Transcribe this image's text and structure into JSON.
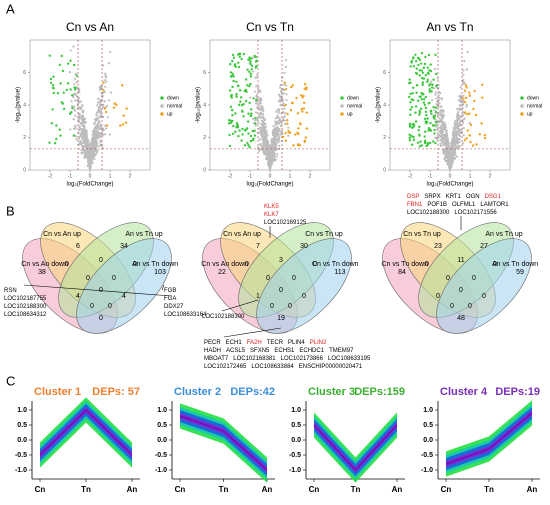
{
  "panel_labels": [
    "A",
    "B",
    "C"
  ],
  "volcano": [
    {
      "title": "Cn vs An",
      "ylabel": "-log₁₀(pvalue)",
      "xlabel": "log₂(FoldChange)",
      "legend": [
        "down",
        "normal",
        "up"
      ],
      "colors": [
        "#3cc83c",
        "#bdbdbd",
        "#f0a020"
      ],
      "xticks": [
        -2,
        -1,
        0,
        1,
        2
      ],
      "yticks": [
        0,
        2,
        4,
        6
      ]
    },
    {
      "title": "Cn vs Tn",
      "ylabel": "-log₁₀(pvalue)",
      "xlabel": "log₂(FoldChange)",
      "legend": [
        "down",
        "normal",
        "up"
      ],
      "colors": [
        "#3cc83c",
        "#bdbdbd",
        "#f0a020"
      ],
      "xticks": [
        -2,
        -1,
        0,
        1,
        2
      ],
      "yticks": [
        0,
        2,
        4,
        6
      ]
    },
    {
      "title": "An vs Tn",
      "ylabel": "-log₁₀(pvalue)",
      "xlabel": "log₂(FoldChange)",
      "legend": [
        "down",
        "normal",
        "up"
      ],
      "colors": [
        "#3cc83c",
        "#bdbdbd",
        "#f0a020"
      ],
      "xticks": [
        -2,
        -1,
        0,
        1,
        2
      ],
      "yticks": [
        0,
        2,
        4,
        6
      ]
    }
  ],
  "venn": [
    {
      "sets": [
        "Cn vs An up",
        "An vs Tn up",
        "Cn vs An down",
        "An vs Tn down"
      ],
      "counts": [
        6,
        34,
        38,
        103,
        0,
        0,
        0,
        4,
        4,
        0,
        0,
        0,
        0,
        0,
        0
      ],
      "annotations": [
        {
          "lines": [
            [
              "RSN"
            ],
            [
              "LOC102187755"
            ],
            [
              "LOC102188300"
            ],
            [
              "LOC108634312"
            ]
          ]
        },
        {
          "lines": [
            [
              "FGB"
            ],
            [
              "FGA"
            ],
            [
              "DDX27"
            ],
            [
              "LOC108633164"
            ]
          ]
        }
      ]
    },
    {
      "sets": [
        "Cn vs An up",
        "Cn vs Tn up",
        "Cn vs An down",
        "Cn vs Tn down"
      ],
      "counts": [
        7,
        30,
        22,
        113,
        3,
        0,
        0,
        1,
        0,
        19,
        0,
        0,
        0,
        0,
        0
      ],
      "annotations": [
        {
          "lines": [
            [
              {
                "text": "KLK5",
                "color": "#e02020"
              }
            ],
            [
              {
                "text": "KLK7",
                "color": "#e02020"
              }
            ],
            [
              "LOC102169125"
            ]
          ]
        },
        {
          "lines": [
            [
              "LOC102188300"
            ]
          ]
        },
        {
          "lines": [
            [
              "PECR",
              "ECH1",
              {
                "text": "FA2H",
                "color": "#e02020"
              },
              "TECR",
              "PLIN4",
              {
                "text": "PLIN2",
                "color": "#e02020"
              }
            ],
            [
              "HADH",
              "ACSL5",
              "SFXN5",
              "ECHS1",
              "ECHDC1",
              "TMEM97"
            ],
            [
              "MBOAT7",
              "LOC102168381",
              "LOC102173866",
              "LOC108633195"
            ],
            [
              "LOC102172465",
              "LOC108633884",
              "ENSCHIP00000020471"
            ]
          ]
        }
      ]
    },
    {
      "sets": [
        "Cn vs Tn up",
        "An vs Tn up",
        "Cn vs Tn down",
        "An vs Tn down"
      ],
      "counts": [
        23,
        27,
        84,
        59,
        11,
        0,
        0,
        0,
        0,
        48,
        0,
        0,
        0,
        0,
        0
      ],
      "annotations": [
        {
          "lines": [
            [
              {
                "text": "DSP",
                "color": "#e02020"
              },
              "SRPX",
              "KRT1",
              "OGN",
              {
                "text": "DSG1",
                "color": "#e02020"
              }
            ],
            [
              {
                "text": "FBN1",
                "color": "#e02020"
              },
              "POF1B",
              "OLFML1",
              "LAMTOR1"
            ],
            [
              "LOC102188300",
              "LOC102171556"
            ]
          ]
        }
      ]
    }
  ],
  "chart_data": {
    "type": "line",
    "categories": [
      "Cn",
      "Tn",
      "An"
    ],
    "ylim": [
      -1.3,
      1.3
    ],
    "yticks": [
      {
        "value": 1,
        "label": "1.0"
      },
      0.5,
      {
        "value": 0,
        "label": "0.0"
      },
      -0.5,
      {
        "value": -1,
        "label": "-1.0"
      }
    ],
    "series": [
      {
        "name": "Cluster 1",
        "deps": "DEPs: 57",
        "color": "#f08030",
        "values": [
          -0.5,
          1.0,
          -0.5
        ]
      },
      {
        "name": "Cluster 2",
        "deps": "DEPs:42",
        "color": "#3a8ed8",
        "values": [
          0.8,
          0.3,
          -1.0
        ]
      },
      {
        "name": "Cluster 3",
        "deps": "DEPs:159",
        "color": "#3cb030",
        "values": [
          0.5,
          -1.0,
          0.5
        ]
      },
      {
        "name": "Cluster 4",
        "deps": "DEPs:19",
        "color": "#7a30b8",
        "values": [
          -0.8,
          -0.3,
          0.9
        ]
      }
    ]
  }
}
